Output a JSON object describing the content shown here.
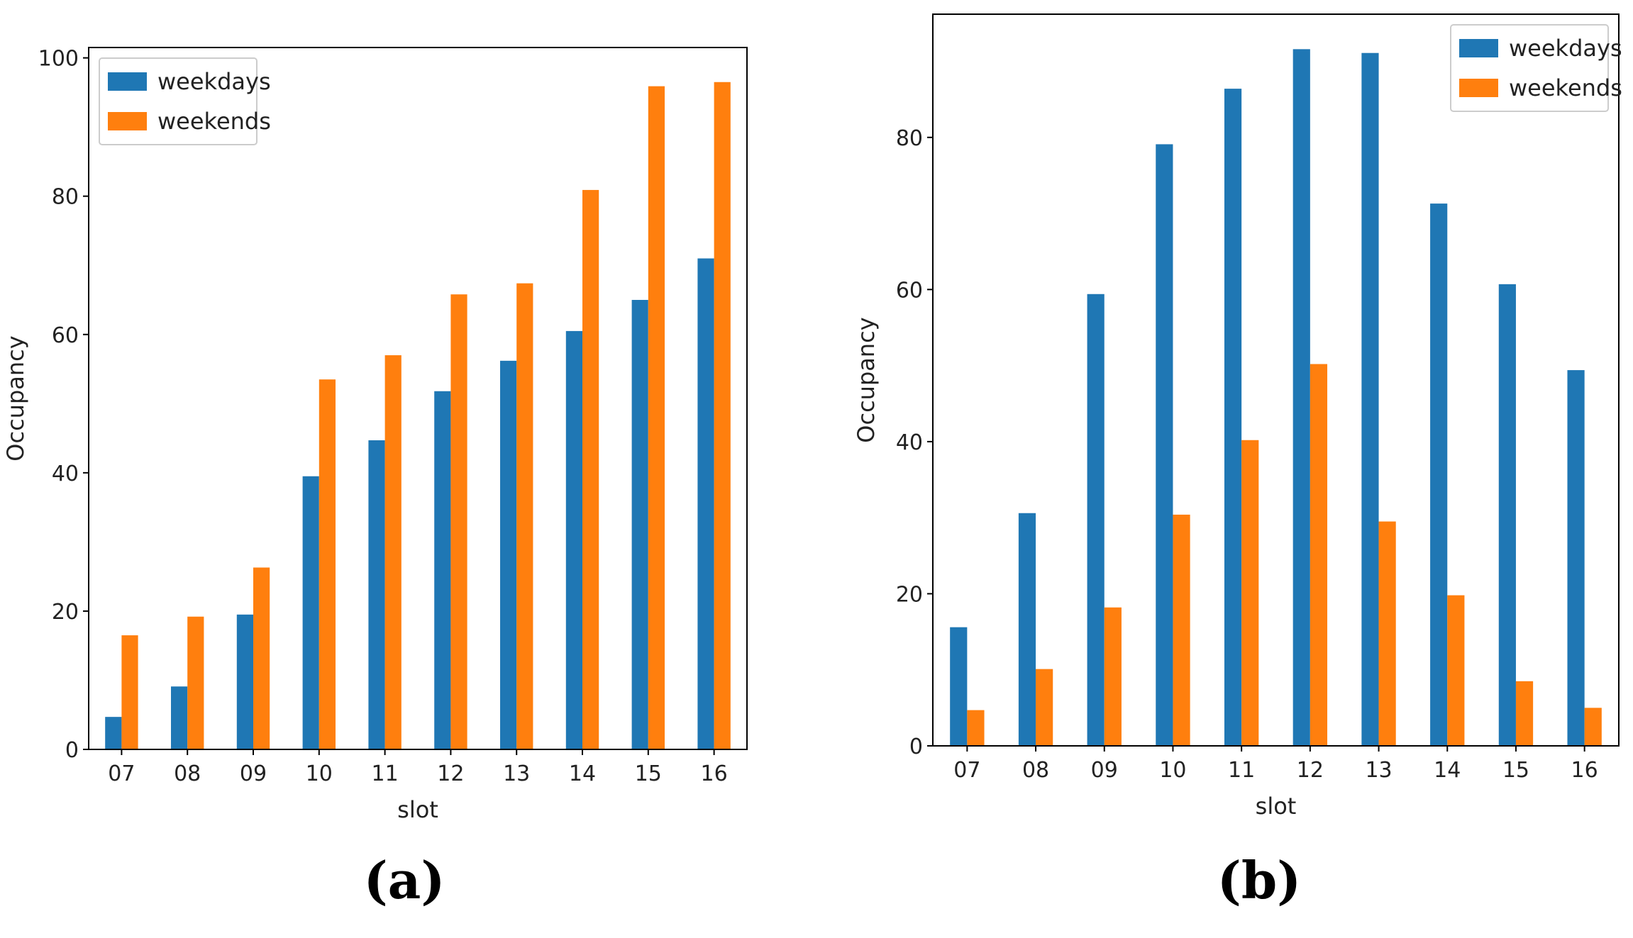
{
  "colors": {
    "weekdays": "#1f77b4",
    "weekends": "#ff7f0e"
  },
  "chart_data": [
    {
      "type": "bar",
      "panel_label": "(a)",
      "categories": [
        "07",
        "08",
        "09",
        "10",
        "11",
        "12",
        "13",
        "14",
        "15",
        "16"
      ],
      "series": [
        {
          "name": "weekdays",
          "values": [
            4.7,
            9.1,
            19.5,
            39.5,
            44.7,
            51.8,
            56.2,
            60.5,
            65,
            71
          ]
        },
        {
          "name": "weekends",
          "values": [
            16.5,
            19.2,
            26.3,
            53.5,
            57,
            65.8,
            67.4,
            80.9,
            95.9,
            96.5
          ]
        }
      ],
      "title": "",
      "xlabel": "slot",
      "ylabel": "Occupancy",
      "ylim": [
        0,
        101.5
      ],
      "yticks": [
        0,
        20,
        40,
        60,
        80,
        100
      ],
      "grid": false,
      "legend_position": "top-left"
    },
    {
      "type": "bar",
      "panel_label": "(b)",
      "categories": [
        "07",
        "08",
        "09",
        "10",
        "11",
        "12",
        "13",
        "14",
        "15",
        "16"
      ],
      "series": [
        {
          "name": "weekdays",
          "values": [
            15.6,
            30.6,
            59.4,
            79.1,
            86.4,
            91.6,
            91.1,
            71.3,
            60.7,
            49.4
          ]
        },
        {
          "name": "weekends",
          "values": [
            4.7,
            10.1,
            18.2,
            30.4,
            40.2,
            50.2,
            29.5,
            19.8,
            8.5,
            5
          ]
        }
      ],
      "title": "",
      "xlabel": "slot",
      "ylabel": "Occupancy",
      "ylim": [
        0,
        96.2
      ],
      "yticks": [
        0,
        20,
        40,
        60,
        80
      ],
      "grid": false,
      "legend_position": "top-right"
    }
  ]
}
